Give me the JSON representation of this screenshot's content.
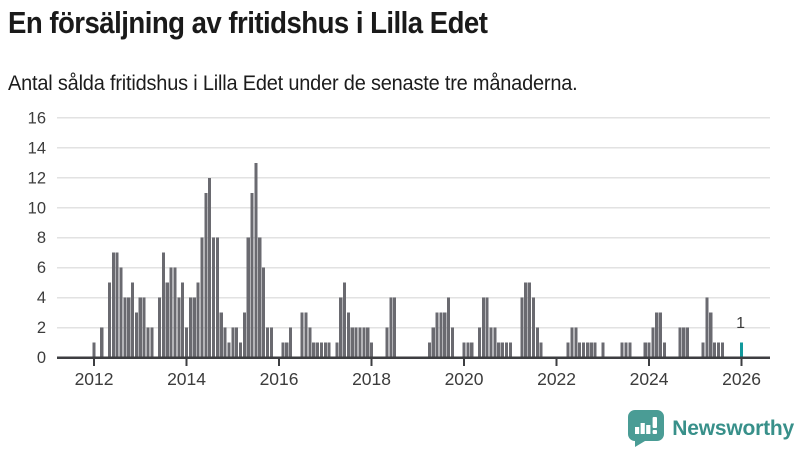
{
  "header": {
    "title": "En försäljning av fritidshus i Lilla Edet",
    "subtitle": "Antal sålda fritidshus i Lilla Edet under de senaste tre månaderna."
  },
  "chart_data": {
    "type": "bar",
    "title": "En försäljning av fritidshus i Lilla Edet",
    "subtitle": "Antal sålda fritidshus i Lilla Edet under de senaste tre månaderna.",
    "x_frequency": "monthly",
    "x_start_month": "2011-04",
    "x_tick_labels": [
      "2012",
      "2014",
      "2016",
      "2018",
      "2020",
      "2022",
      "2024",
      "2026"
    ],
    "y_ticks": [
      0,
      2,
      4,
      6,
      8,
      10,
      12,
      14,
      16
    ],
    "ylim": [
      0,
      16
    ],
    "grid": "horizontal",
    "bar_color": "#6a6a70",
    "axis_color": "#3d3e41",
    "grid_color": "#e2e2e2",
    "tick_text_color": "#3c3c3c",
    "values": [
      0,
      0,
      0,
      0,
      0,
      0,
      0,
      0,
      0,
      1,
      0,
      2,
      0,
      5,
      7,
      7,
      6,
      4,
      4,
      5,
      3,
      4,
      4,
      2,
      2,
      0,
      4,
      7,
      5,
      6,
      6,
      4,
      5,
      2,
      4,
      4,
      5,
      8,
      11,
      12,
      8,
      8,
      3,
      2,
      1,
      2,
      2,
      1,
      3,
      8,
      11,
      13,
      8,
      6,
      2,
      2,
      0,
      0,
      1,
      1,
      2,
      0,
      0,
      3,
      3,
      2,
      1,
      1,
      1,
      1,
      1,
      0,
      1,
      4,
      5,
      3,
      2,
      2,
      2,
      2,
      2,
      1,
      0,
      0,
      0,
      2,
      4,
      4,
      0,
      0,
      0,
      0,
      0,
      0,
      0,
      0,
      1,
      2,
      3,
      3,
      3,
      4,
      2,
      0,
      0,
      1,
      1,
      1,
      0,
      2,
      4,
      4,
      2,
      2,
      1,
      1,
      1,
      1,
      0,
      0,
      4,
      5,
      5,
      4,
      2,
      1,
      0,
      0,
      0,
      0,
      0,
      0,
      1,
      2,
      2,
      1,
      1,
      1,
      1,
      1,
      0,
      1,
      0,
      0,
      0,
      0,
      1,
      1,
      1,
      0,
      0,
      0,
      1,
      1,
      2,
      3,
      3,
      1,
      0,
      0,
      0,
      2,
      2,
      2,
      0,
      0,
      0,
      1,
      4,
      3,
      1,
      1,
      1,
      0,
      0,
      0,
      0,
      1
    ],
    "highlight": {
      "index": 177,
      "value": 1,
      "label": "1",
      "color": "#11999c"
    }
  },
  "footer": {
    "brand": "Newsworthy",
    "brand_color": "#38908a",
    "icon": "newsworthy-chart-bubble-icon",
    "icon_color": "#4a9c95"
  }
}
